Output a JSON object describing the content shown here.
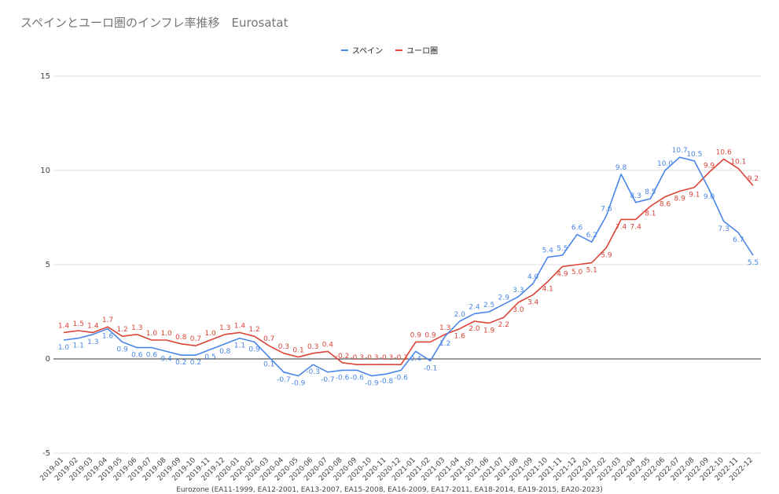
{
  "title": "スペインとユーロ圏のインフレ率推移　Eurosatat",
  "footnote": "Eurozone (EA11-1999, EA12-2001, EA13-2007, EA15-2008, EA16-2009, EA17-2011, EA18-2014, EA19-2015, EA20-2023)",
  "chart_data": {
    "type": "line",
    "title": "スペインとユーロ圏のインフレ率推移　Eurosatat",
    "xlabel": "",
    "ylabel": "",
    "ylim": [
      -5,
      15
    ],
    "yticks": [
      -5,
      0,
      5,
      10,
      15
    ],
    "grid": true,
    "legend": "top-center",
    "categories": [
      "2019-01",
      "2019-02",
      "2019-03",
      "2019-04",
      "2019-05",
      "2019-06",
      "2019-07",
      "2019-08",
      "2019-09",
      "2019-10",
      "2019-11",
      "2019-12",
      "2020-01",
      "2020-02",
      "2020-03",
      "2020-04",
      "2020-05",
      "2020-06",
      "2020-07",
      "2020-08",
      "2020-09",
      "2020-10",
      "2020-11",
      "2020-12",
      "2021-01",
      "2021-02",
      "2021-03",
      "2021-04",
      "2021-05",
      "2021-06",
      "2021-07",
      "2021-08",
      "2021-09",
      "2021-10",
      "2021-11",
      "2021-12",
      "2022-01",
      "2022-02",
      "2022-03",
      "2022-04",
      "2022-05",
      "2022-06",
      "2022-07",
      "2022-08",
      "2022-09",
      "2022-10",
      "2022-11",
      "2022-12"
    ],
    "series": [
      {
        "name": "スペイン",
        "color": "#4a86e8",
        "values": [
          1.0,
          1.1,
          1.3,
          1.6,
          0.9,
          0.6,
          0.6,
          0.4,
          0.2,
          0.2,
          0.5,
          0.8,
          1.1,
          0.9,
          0.1,
          -0.7,
          -0.9,
          -0.3,
          -0.7,
          -0.6,
          -0.6,
          -0.9,
          -0.8,
          -0.6,
          0.4,
          -0.1,
          1.2,
          2.0,
          2.4,
          2.5,
          2.9,
          3.3,
          4.0,
          5.4,
          5.5,
          6.6,
          6.2,
          7.6,
          9.8,
          8.3,
          8.5,
          10.0,
          10.7,
          10.5,
          9.0,
          7.3,
          6.7,
          5.5
        ]
      },
      {
        "name": "ユーロ圏",
        "color": "#db4437",
        "values": [
          1.4,
          1.5,
          1.4,
          1.7,
          1.2,
          1.3,
          1.0,
          1.0,
          0.8,
          0.7,
          1.0,
          1.3,
          1.4,
          1.2,
          0.7,
          0.3,
          0.1,
          0.3,
          0.4,
          -0.2,
          -0.3,
          -0.3,
          -0.3,
          -0.3,
          0.9,
          0.9,
          1.3,
          1.6,
          2.0,
          1.9,
          2.2,
          3.0,
          3.4,
          4.1,
          4.9,
          5.0,
          5.1,
          5.9,
          7.4,
          7.4,
          8.1,
          8.6,
          8.9,
          9.1,
          9.9,
          10.6,
          10.1,
          9.2
        ]
      }
    ]
  }
}
